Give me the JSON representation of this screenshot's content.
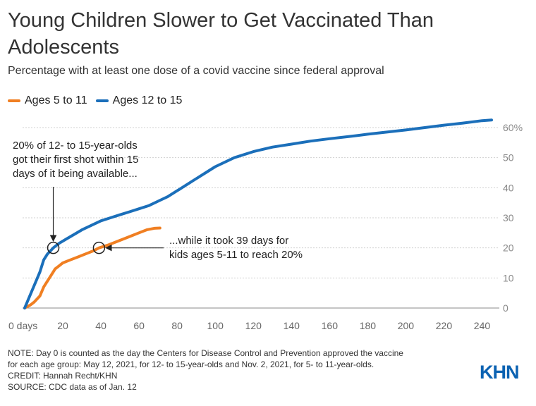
{
  "header": {
    "title": "Young Children Slower to Get Vaccinated Than Adolescents",
    "subtitle": "Percentage with at least one dose of a covid vaccine since federal approval"
  },
  "legend": {
    "items": [
      {
        "label": "Ages 5 to 11",
        "color": "#f07f22"
      },
      {
        "label": "Ages 12 to 15",
        "color": "#1b6fba"
      }
    ]
  },
  "annotations": {
    "left": "20% of 12- to 15-year-olds\ngot their first shot within 15\ndays of it being available...",
    "right": "...while it took 39 days for\nkids ages 5-11 to reach 20%"
  },
  "footer": {
    "notes": [
      "NOTE: Day 0 is counted as the day the Centers for Disease Control and Prevention approved the vaccine",
      "for each age group: May 12, 2021, for 12- to 15-year-olds and Nov. 2, 2021, for 5- to 11-year-olds.",
      "CREDIT: Hannah Recht/KHN",
      "SOURCE: CDC data as of Jan. 12"
    ],
    "logo": "KHN"
  },
  "chart_data": {
    "type": "line",
    "title": "Young Children Slower to Get Vaccinated Than Adolescents",
    "subtitle": "Percentage with at least one dose of a covid vaccine since federal approval",
    "xlabel": "days",
    "ylabel": "",
    "xlim": [
      0,
      245
    ],
    "ylim": [
      0,
      60
    ],
    "x_ticks": [
      0,
      20,
      40,
      60,
      80,
      100,
      120,
      140,
      160,
      180,
      200,
      220,
      240
    ],
    "x_tick_labels": [
      "0 days",
      "20",
      "40",
      "60",
      "80",
      "100",
      "120",
      "140",
      "160",
      "180",
      "200",
      "220",
      "240"
    ],
    "y_ticks": [
      0,
      10,
      20,
      30,
      40,
      50,
      60
    ],
    "y_tick_labels": [
      "0",
      "10",
      "20",
      "30",
      "40",
      "50",
      "60%"
    ],
    "grid": true,
    "legend_position": "top-left",
    "series": [
      {
        "name": "Ages 5 to 11",
        "color": "#f07f22",
        "points": [
          [
            0,
            0
          ],
          [
            3,
            1
          ],
          [
            5,
            2
          ],
          [
            8,
            4
          ],
          [
            10,
            7
          ],
          [
            12,
            9
          ],
          [
            14,
            11
          ],
          [
            16,
            13
          ],
          [
            18,
            14
          ],
          [
            20,
            15
          ],
          [
            24,
            16
          ],
          [
            28,
            17
          ],
          [
            32,
            18
          ],
          [
            36,
            19
          ],
          [
            39,
            20
          ],
          [
            44,
            21
          ],
          [
            48,
            22
          ],
          [
            52,
            23
          ],
          [
            56,
            24
          ],
          [
            60,
            25
          ],
          [
            64,
            26
          ],
          [
            68,
            26.5
          ],
          [
            71,
            26.6
          ]
        ]
      },
      {
        "name": "Ages 12 to 15",
        "color": "#1b6fba",
        "points": [
          [
            0,
            0
          ],
          [
            2,
            3
          ],
          [
            4,
            6
          ],
          [
            6,
            9
          ],
          [
            8,
            12
          ],
          [
            10,
            16
          ],
          [
            12,
            18
          ],
          [
            15,
            20
          ],
          [
            18,
            21.5
          ],
          [
            22,
            23
          ],
          [
            26,
            24.5
          ],
          [
            30,
            26
          ],
          [
            35,
            27.5
          ],
          [
            40,
            29
          ],
          [
            45,
            30
          ],
          [
            50,
            31
          ],
          [
            55,
            32
          ],
          [
            60,
            33
          ],
          [
            65,
            34
          ],
          [
            70,
            35.5
          ],
          [
            75,
            37
          ],
          [
            80,
            39
          ],
          [
            85,
            41
          ],
          [
            90,
            43
          ],
          [
            95,
            45
          ],
          [
            100,
            47
          ],
          [
            110,
            50
          ],
          [
            120,
            52
          ],
          [
            130,
            53.5
          ],
          [
            140,
            54.5
          ],
          [
            150,
            55.5
          ],
          [
            160,
            56.3
          ],
          [
            170,
            57
          ],
          [
            180,
            57.8
          ],
          [
            190,
            58.5
          ],
          [
            200,
            59.2
          ],
          [
            210,
            60
          ],
          [
            220,
            60.8
          ],
          [
            230,
            61.5
          ],
          [
            240,
            62.3
          ],
          [
            245,
            62.5
          ]
        ]
      }
    ],
    "markers": [
      {
        "x": 15,
        "y": 20
      },
      {
        "x": 39,
        "y": 20
      }
    ]
  }
}
